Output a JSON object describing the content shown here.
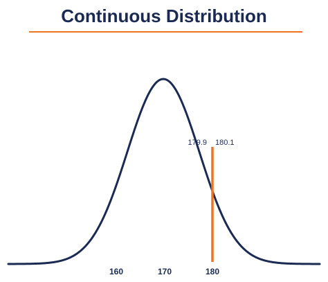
{
  "title": "Continuous Distribution",
  "colors": {
    "curve": "#1a2a52",
    "accent": "#ee7424",
    "text": "#1a2a52"
  },
  "axis": {
    "tick_labels": [
      "160",
      "170",
      "180"
    ]
  },
  "marker": {
    "left_label": "179.9",
    "right_label": "180.1"
  }
}
